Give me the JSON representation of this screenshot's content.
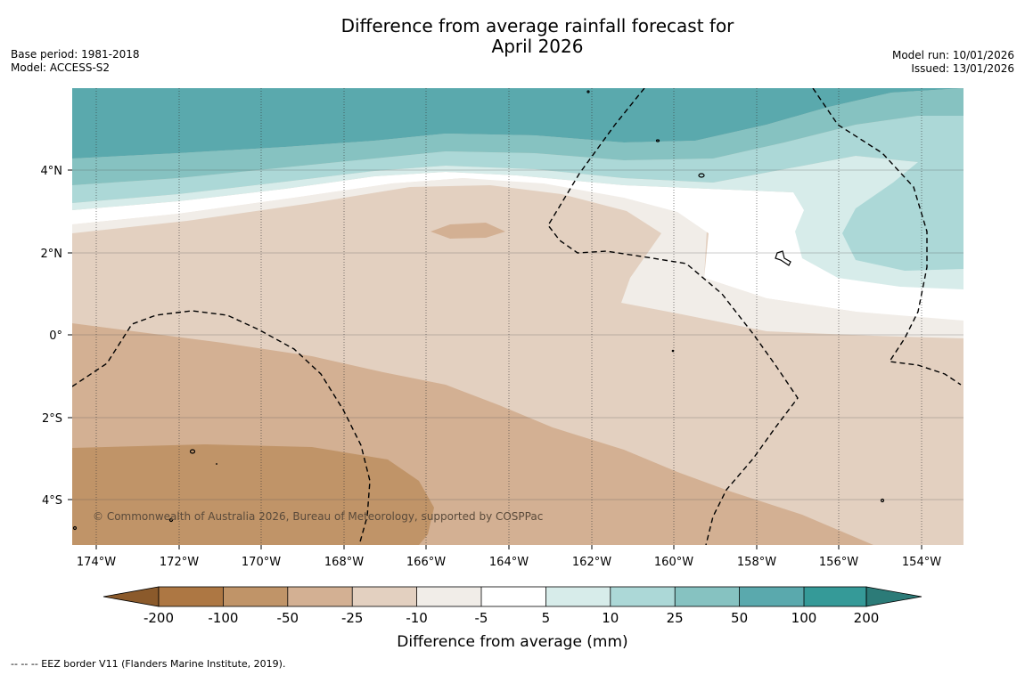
{
  "title_line1": "Difference from average rainfall forecast for",
  "title_line2": "April 2026",
  "base_period": "Base period: 1981-2018",
  "model": "Model: ACCESS-S2",
  "model_run": "Model run: 10/01/2026",
  "issued": "Issued: 13/01/2026",
  "copyright": "© Commonwealth of Australia 2026, Bureau of Meteorology, supported by COSPPac",
  "lon_labels": [
    "174°W",
    "172°W",
    "170°W",
    "168°W",
    "166°W",
    "164°W",
    "162°W",
    "160°W",
    "158°W",
    "156°W",
    "154°W"
  ],
  "lat_labels": [
    "4°N",
    "2°N",
    "0°",
    "2°S",
    "4°S"
  ],
  "colorbar": {
    "ticks": [
      "-200",
      "-100",
      "-50",
      "-25",
      "-10",
      "-5",
      "5",
      "10",
      "25",
      "50",
      "100",
      "200"
    ],
    "label": "Difference from average (mm)",
    "colors": {
      "under": "#8b5a2b",
      "b1": "#ad7743",
      "b2": "#c09468",
      "b3": "#d3b093",
      "b4": "#e3d0c0",
      "b5": "#f1ede8",
      "b6": "#ffffff",
      "b7": "#d7ecea",
      "b8": "#acd8d7",
      "b9": "#86c2c1",
      "b10": "#5aa9ad",
      "b11": "#359a98",
      "over": "#2c7b78"
    }
  },
  "eez_legend": "--  --  -- EEZ border V11 (Flanders Marine Institute, 2019)."
}
